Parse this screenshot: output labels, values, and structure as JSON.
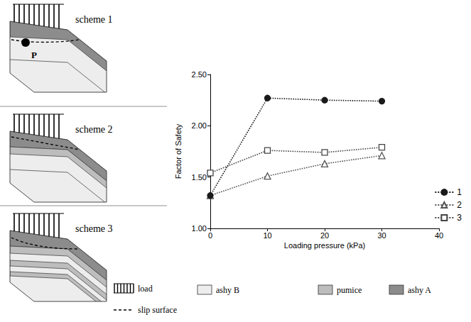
{
  "chart_data": {
    "type": "line",
    "x_label": "Loading pressure (kPa)",
    "y_label": "Factor of Safety",
    "x": [
      0,
      10,
      20,
      30
    ],
    "series": [
      {
        "name": "1",
        "color": "#1a1a1a",
        "marker": "circle",
        "line_style": "dotted",
        "values": [
          1.32,
          2.27,
          2.25,
          2.24
        ]
      },
      {
        "name": "2",
        "color": "#555555",
        "marker": "open_triangle",
        "line_style": "dotted",
        "values": [
          1.32,
          1.51,
          1.63,
          1.71
        ]
      },
      {
        "name": "3",
        "color": "#444444",
        "marker": "open_square",
        "line_style": "dotted",
        "values": [
          1.54,
          1.76,
          1.74,
          1.79
        ]
      }
    ],
    "xlim": [
      0,
      40
    ],
    "xticks": [
      0,
      10,
      20,
      30,
      40
    ],
    "ylim": [
      1.0,
      2.5
    ],
    "yticks": [
      {
        "value": 1.0,
        "label": "1.00"
      },
      {
        "value": 1.5,
        "label": "1.50"
      },
      {
        "value": 2.0,
        "label": "2.00"
      },
      {
        "value": 2.5,
        "label": "2.50"
      }
    ],
    "grid": false,
    "legend": "lower right"
  },
  "diagram": {
    "panels": [
      "scheme 1",
      "scheme 2",
      "scheme 3"
    ],
    "point_label": "P",
    "key": [
      "load",
      "slip surface",
      "ashy B",
      "pumice",
      "ashy A"
    ]
  }
}
